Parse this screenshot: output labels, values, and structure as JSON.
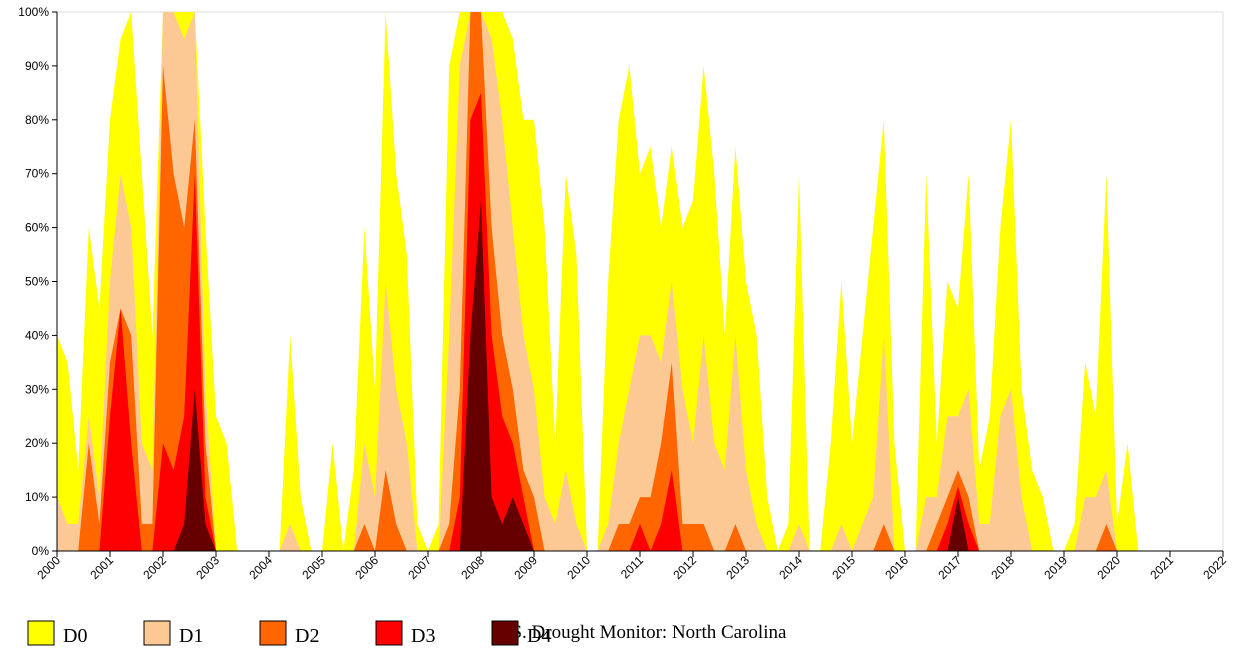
{
  "chart_data": {
    "type": "area",
    "title": "U.S. Drought Monitor: North Carolina",
    "x": [
      2000,
      2000.2,
      2000.4,
      2000.6,
      2000.8,
      2001,
      2001.2,
      2001.4,
      2001.6,
      2001.8,
      2002,
      2002.2,
      2002.4,
      2002.6,
      2002.8,
      2003,
      2003.2,
      2003.4,
      2003.6,
      2003.8,
      2004,
      2004.2,
      2004.4,
      2004.6,
      2004.8,
      2005,
      2005.2,
      2005.4,
      2005.6,
      2005.8,
      2006,
      2006.2,
      2006.4,
      2006.6,
      2006.8,
      2007,
      2007.2,
      2007.4,
      2007.6,
      2007.8,
      2008,
      2008.2,
      2008.4,
      2008.6,
      2008.8,
      2009,
      2009.2,
      2009.4,
      2009.6,
      2009.8,
      2010,
      2010.2,
      2010.4,
      2010.6,
      2010.8,
      2011,
      2011.2,
      2011.4,
      2011.6,
      2011.8,
      2012,
      2012.2,
      2012.4,
      2012.6,
      2012.8,
      2013,
      2013.2,
      2013.4,
      2013.6,
      2013.8,
      2014,
      2014.2,
      2014.4,
      2014.6,
      2014.8,
      2015,
      2015.2,
      2015.4,
      2015.6,
      2015.8,
      2016,
      2016.2,
      2016.4,
      2016.6,
      2016.8,
      2017,
      2017.2,
      2017.4,
      2017.6,
      2017.8,
      2018,
      2018.2,
      2018.4,
      2018.6,
      2018.8,
      2019,
      2019.2,
      2019.4,
      2019.6,
      2019.8,
      2020,
      2020.2,
      2020.4,
      2020.6,
      2020.8,
      2021,
      2021.2,
      2021.4,
      2021.6,
      2021.8,
      2022
    ],
    "series": [
      {
        "name": "D0",
        "color": "#ffff00",
        "values": [
          40,
          35,
          15,
          60,
          45,
          80,
          95,
          100,
          70,
          40,
          100,
          100,
          100,
          100,
          60,
          25,
          20,
          0,
          0,
          0,
          0,
          0,
          40,
          10,
          0,
          0,
          20,
          0,
          15,
          60,
          30,
          100,
          70,
          55,
          5,
          0,
          5,
          90,
          100,
          100,
          100,
          100,
          100,
          95,
          80,
          80,
          60,
          20,
          70,
          55,
          0,
          0,
          50,
          80,
          90,
          70,
          75,
          60,
          75,
          60,
          65,
          90,
          70,
          40,
          75,
          50,
          40,
          10,
          0,
          5,
          70,
          0,
          0,
          20,
          50,
          20,
          40,
          60,
          80,
          20,
          0,
          0,
          70,
          20,
          50,
          45,
          70,
          15,
          25,
          60,
          80,
          30,
          15,
          10,
          0,
          0,
          5,
          35,
          25,
          70,
          5,
          20,
          0,
          0,
          0,
          0,
          0,
          0,
          0,
          0,
          0
        ]
      },
      {
        "name": "D1",
        "color": "#fcc995",
        "values": [
          10,
          5,
          5,
          25,
          10,
          50,
          70,
          60,
          20,
          15,
          100,
          100,
          95,
          100,
          30,
          0,
          0,
          0,
          0,
          0,
          0,
          0,
          5,
          0,
          0,
          0,
          0,
          0,
          0,
          20,
          10,
          50,
          30,
          20,
          0,
          0,
          0,
          40,
          90,
          100,
          100,
          95,
          80,
          60,
          40,
          30,
          10,
          5,
          15,
          5,
          0,
          0,
          5,
          20,
          30,
          40,
          40,
          35,
          50,
          30,
          20,
          40,
          20,
          15,
          40,
          15,
          5,
          0,
          0,
          0,
          5,
          0,
          0,
          0,
          5,
          0,
          5,
          10,
          40,
          0,
          0,
          0,
          10,
          10,
          25,
          25,
          30,
          5,
          5,
          25,
          30,
          10,
          0,
          0,
          0,
          0,
          0,
          10,
          10,
          15,
          0,
          0,
          0,
          0,
          0,
          0,
          0,
          0,
          0,
          0,
          0
        ]
      },
      {
        "name": "D2",
        "color": "#ff6600",
        "values": [
          0,
          0,
          0,
          20,
          5,
          35,
          45,
          40,
          5,
          5,
          90,
          70,
          60,
          80,
          20,
          0,
          0,
          0,
          0,
          0,
          0,
          0,
          0,
          0,
          0,
          0,
          0,
          0,
          0,
          5,
          0,
          15,
          5,
          0,
          0,
          0,
          0,
          5,
          30,
          100,
          100,
          60,
          40,
          30,
          15,
          10,
          0,
          0,
          0,
          0,
          0,
          0,
          0,
          5,
          5,
          10,
          10,
          20,
          35,
          5,
          5,
          5,
          0,
          0,
          5,
          0,
          0,
          0,
          0,
          0,
          0,
          0,
          0,
          0,
          0,
          0,
          0,
          0,
          5,
          0,
          0,
          0,
          0,
          5,
          10,
          15,
          10,
          0,
          0,
          0,
          0,
          0,
          0,
          0,
          0,
          0,
          0,
          0,
          0,
          5,
          0,
          0,
          0,
          0,
          0,
          0,
          0,
          0,
          0,
          0,
          0
        ]
      },
      {
        "name": "D3",
        "color": "#ff0000",
        "values": [
          0,
          0,
          0,
          0,
          0,
          25,
          45,
          20,
          0,
          0,
          20,
          15,
          25,
          70,
          10,
          0,
          0,
          0,
          0,
          0,
          0,
          0,
          0,
          0,
          0,
          0,
          0,
          0,
          0,
          0,
          0,
          0,
          0,
          0,
          0,
          0,
          0,
          0,
          10,
          80,
          85,
          40,
          25,
          20,
          10,
          0,
          0,
          0,
          0,
          0,
          0,
          0,
          0,
          0,
          0,
          5,
          0,
          5,
          15,
          0,
          0,
          0,
          0,
          0,
          0,
          0,
          0,
          0,
          0,
          0,
          0,
          0,
          0,
          0,
          0,
          0,
          0,
          0,
          0,
          0,
          0,
          0,
          0,
          0,
          5,
          12,
          5,
          0,
          0,
          0,
          0,
          0,
          0,
          0,
          0,
          0,
          0,
          0,
          0,
          0,
          0,
          0,
          0,
          0,
          0,
          0,
          0,
          0,
          0,
          0,
          0
        ]
      },
      {
        "name": "D4",
        "color": "#660000",
        "values": [
          0,
          0,
          0,
          0,
          0,
          0,
          0,
          0,
          0,
          0,
          0,
          0,
          5,
          30,
          5,
          0,
          0,
          0,
          0,
          0,
          0,
          0,
          0,
          0,
          0,
          0,
          0,
          0,
          0,
          0,
          0,
          0,
          0,
          0,
          0,
          0,
          0,
          0,
          0,
          40,
          65,
          10,
          5,
          10,
          5,
          0,
          0,
          0,
          0,
          0,
          0,
          0,
          0,
          0,
          0,
          0,
          0,
          0,
          0,
          0,
          0,
          0,
          0,
          0,
          0,
          0,
          0,
          0,
          0,
          0,
          0,
          0,
          0,
          0,
          0,
          0,
          0,
          0,
          0,
          0,
          0,
          0,
          0,
          0,
          0,
          10,
          0,
          0,
          0,
          0,
          0,
          0,
          0,
          0,
          0,
          0,
          0,
          0,
          0,
          0,
          0,
          0,
          0,
          0,
          0,
          0,
          0,
          0,
          0,
          0,
          0
        ]
      }
    ],
    "xlim": [
      2000,
      2022
    ],
    "xticks": [
      2000,
      2001,
      2002,
      2003,
      2004,
      2005,
      2006,
      2007,
      2008,
      2009,
      2010,
      2011,
      2012,
      2013,
      2014,
      2015,
      2016,
      2017,
      2018,
      2019,
      2020,
      2021,
      2022
    ],
    "ylim": [
      0,
      100
    ],
    "yticks": [
      {
        "value": 0,
        "label": "0%"
      },
      {
        "value": 10,
        "label": "10%"
      },
      {
        "value": 20,
        "label": "20%"
      },
      {
        "value": 30,
        "label": "30%"
      },
      {
        "value": 40,
        "label": "40%"
      },
      {
        "value": 50,
        "label": "50%"
      },
      {
        "value": 60,
        "label": "60%"
      },
      {
        "value": 70,
        "label": "70%"
      },
      {
        "value": 80,
        "label": "80%"
      },
      {
        "value": 90,
        "label": "90%"
      },
      {
        "value": 100,
        "label": "100%"
      }
    ],
    "grid": false,
    "legend": "bottom left"
  }
}
